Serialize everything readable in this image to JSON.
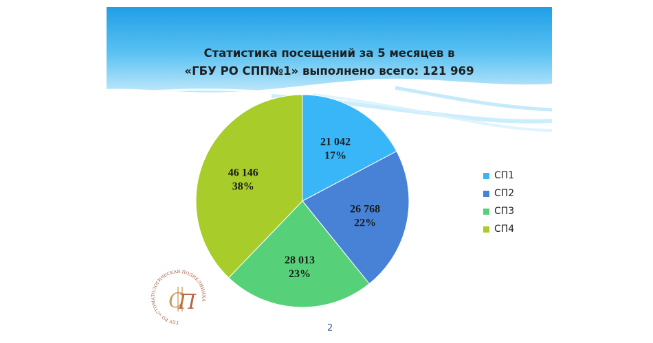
{
  "header": {
    "title_line1": "Статистика посещений за 5 месяцев в",
    "title_line2": "«ГБУ РО СПП№1» выполнено всего: 121 969"
  },
  "chart_data": {
    "type": "pie",
    "title": "Статистика посещений за 5 месяцев в «ГБУ РО СПП№1» выполнено всего: 121 969",
    "total": "121 969",
    "slices": [
      {
        "label": "СП1",
        "value": 21042,
        "value_label": "21 042",
        "percent_label": "17%",
        "color": "#38b6f7"
      },
      {
        "label": "СП2",
        "value": 26768,
        "value_label": "26 768",
        "percent_label": "22%",
        "color": "#4882d6"
      },
      {
        "label": "СП3",
        "value": 28013,
        "value_label": "28 013",
        "percent_label": "23%",
        "color": "#57d179"
      },
      {
        "label": "СП4",
        "value": 46146,
        "value_label": "46 146",
        "percent_label": "38%",
        "color": "#a8cc2a"
      }
    ],
    "start_angle_deg": 0,
    "direction": "clockwise",
    "legend_position": "right"
  },
  "footer": {
    "page_number": "2"
  },
  "logo": {
    "text": "ГБУ РО «СТОМАТОЛОГИЧЕСКАЯ ПОЛИКЛИНИКА №1»"
  },
  "colors": {
    "header_sky": "#2aa6e8",
    "header_light": "#c9ecfb"
  }
}
